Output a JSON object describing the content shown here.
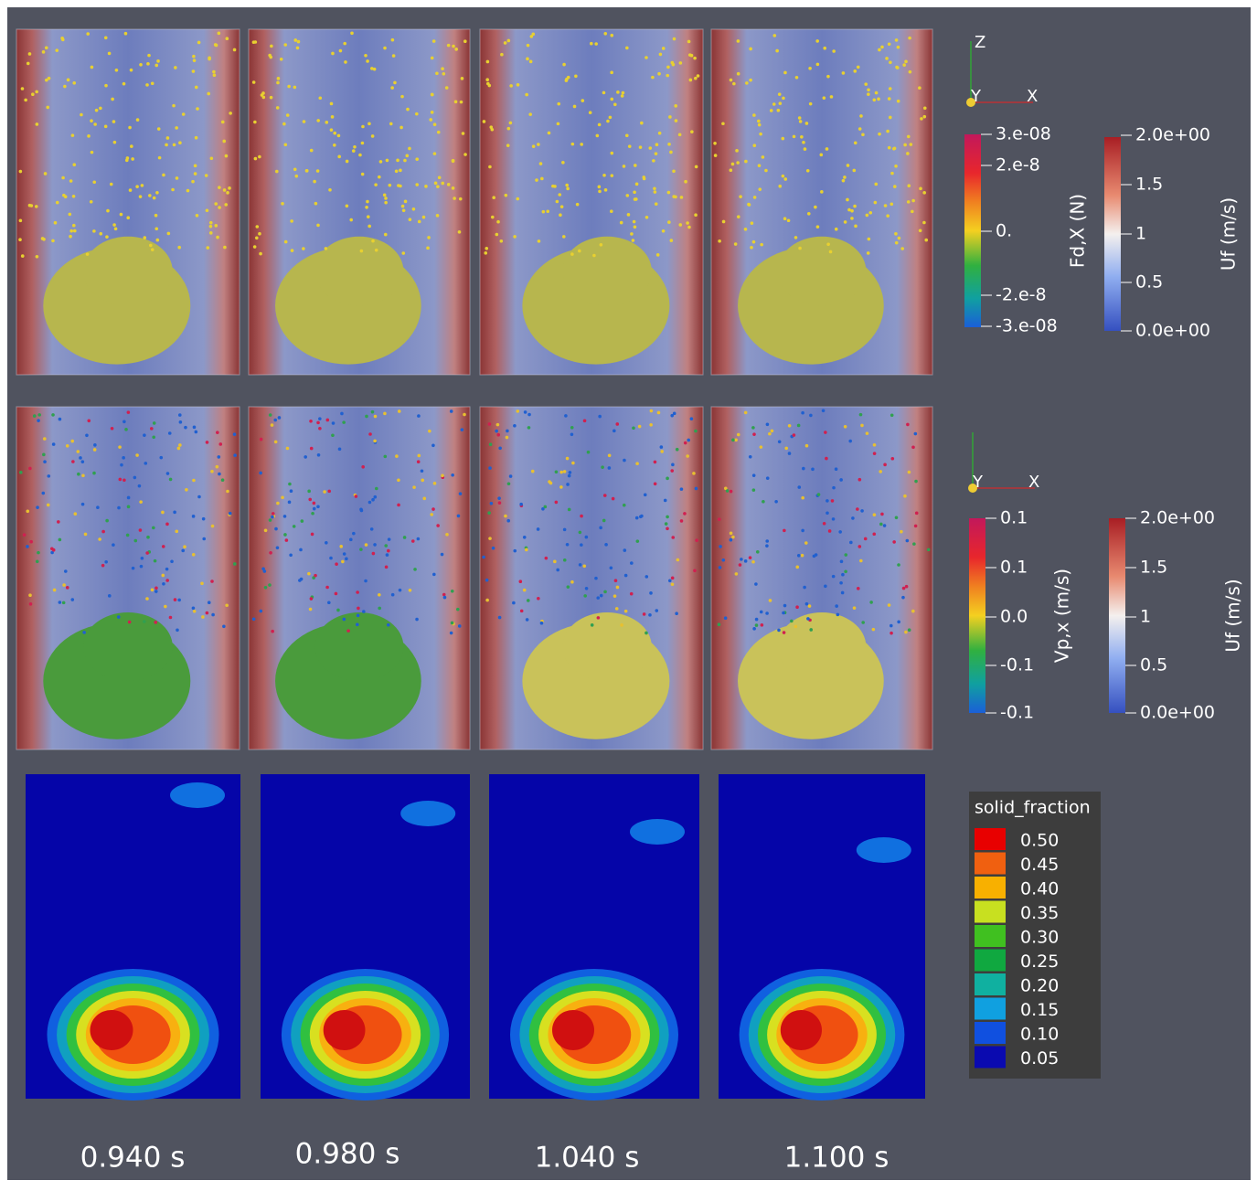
{
  "time_labels": [
    "0.940 s",
    "0.980 s",
    "1.040 s",
    "1.100 s"
  ],
  "row1": {
    "triad": {
      "labels": [
        "Z",
        "Y",
        "X"
      ]
    },
    "colorbars": [
      {
        "title": "Fd,X (N)",
        "ticks": [
          "3.e-08",
          "2.e-8",
          "0.",
          "-2.e-8",
          "-3.e-08"
        ]
      },
      {
        "title": "Uf (m/s)",
        "ticks": [
          "2.0e+00",
          "1.5",
          "1",
          "0.5",
          "0.0e+00"
        ]
      }
    ]
  },
  "row2": {
    "triad": {
      "labels": [
        "Y",
        "X"
      ]
    },
    "colorbars": [
      {
        "title": "Vp,x (m/s)",
        "ticks": [
          "0.1",
          "0.1",
          "0.0",
          "-0.1",
          "-0.1"
        ]
      },
      {
        "title": "Uf (m/s)",
        "ticks": [
          "2.0e+00",
          "1.5",
          "1",
          "0.5",
          "0.0e+00"
        ]
      }
    ]
  },
  "row3": {
    "legend": {
      "title": "solid_fraction",
      "entries": [
        "0.50",
        "0.45",
        "0.40",
        "0.35",
        "0.30",
        "0.25",
        "0.20",
        "0.15",
        "0.10",
        "0.05"
      ]
    }
  }
}
